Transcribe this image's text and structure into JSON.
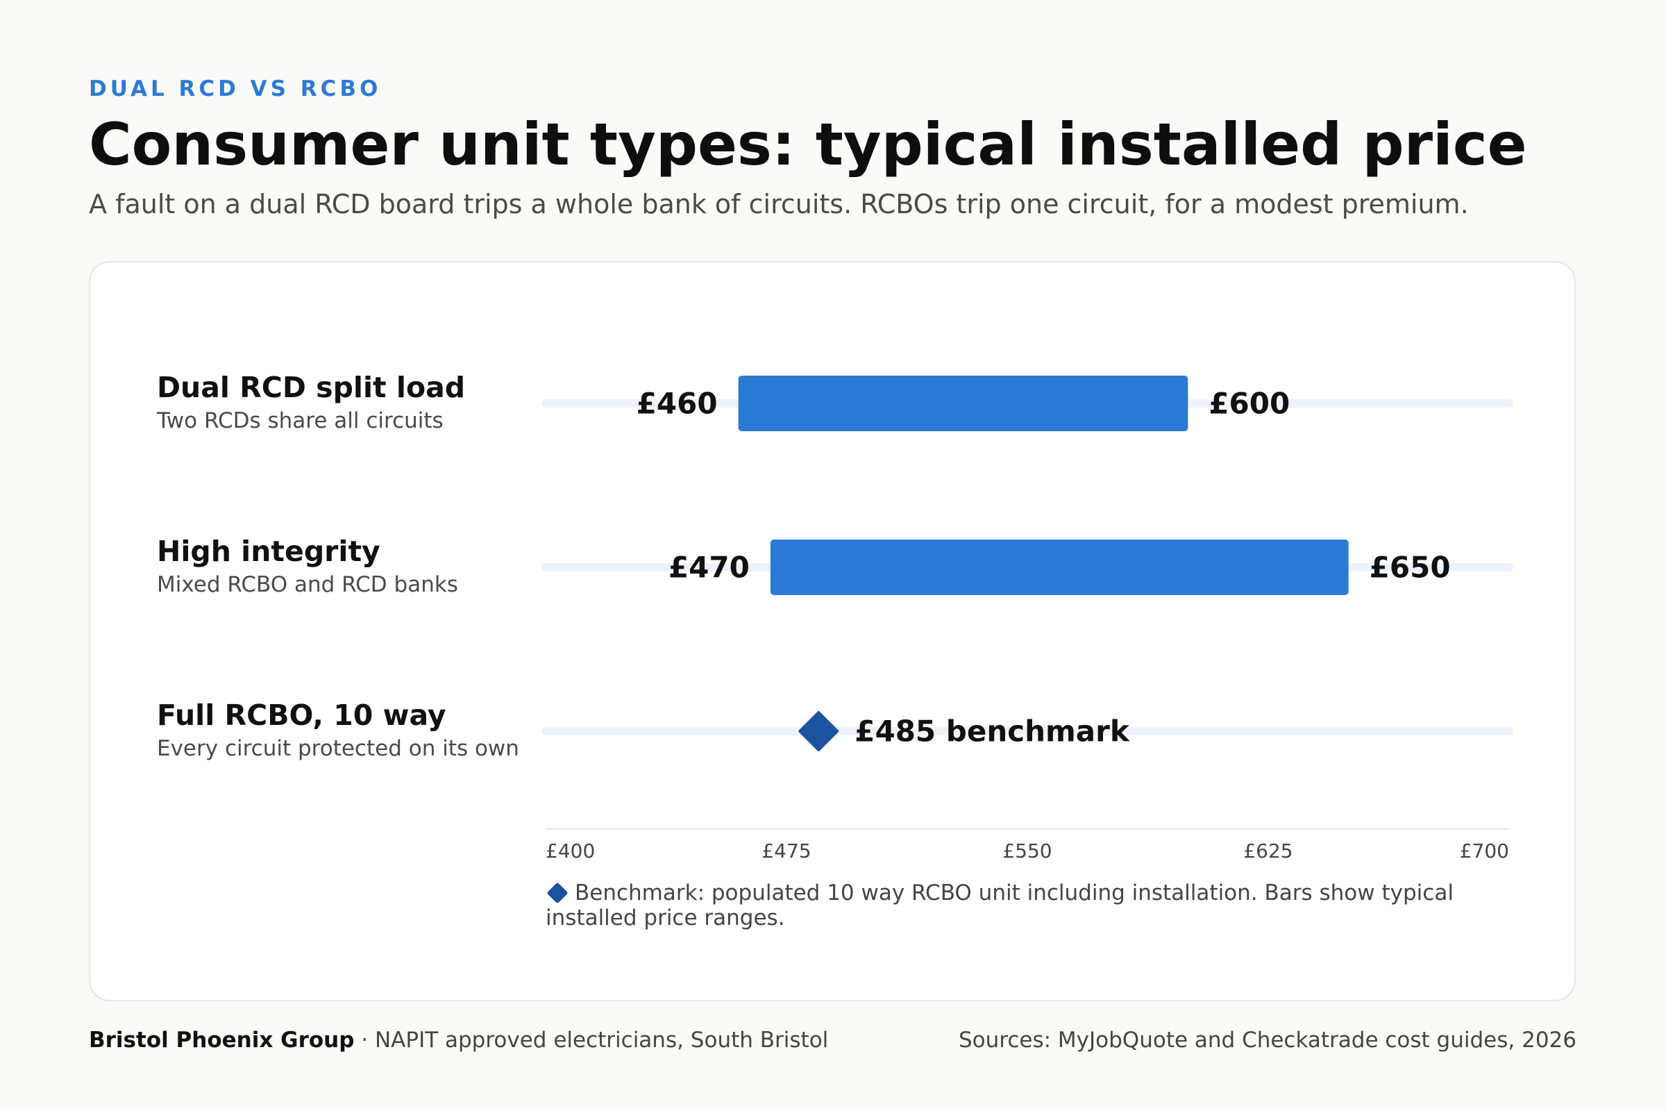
{
  "header": {
    "eyebrow": "DUAL RCD VS RCBO",
    "title": "Consumer unit types: typical installed price",
    "subtitle": "A fault on a dual RCD board trips a whole bank of circuits. RCBOs trip one circuit, for a modest premium."
  },
  "chart_data": {
    "type": "bar",
    "xlim": [
      400,
      700
    ],
    "x_ticks": [
      "£400",
      "£475",
      "£550",
      "£625",
      "£700"
    ],
    "x_tick_values": [
      400,
      475,
      550,
      625,
      700
    ],
    "rows": [
      {
        "name": "Dual RCD split load",
        "desc": "Two RCDs share all circuits",
        "kind": "range",
        "low": 460,
        "high": 600,
        "low_label": "£460",
        "high_label": "£600"
      },
      {
        "name": "High integrity",
        "desc": "Mixed RCBO and RCD banks",
        "kind": "range",
        "low": 470,
        "high": 650,
        "low_label": "£470",
        "high_label": "£650"
      },
      {
        "name": "Full RCBO, 10 way",
        "desc": "Every circuit protected on its own",
        "kind": "point",
        "value": 485,
        "value_label": "£485 benchmark"
      }
    ],
    "legend": "Benchmark: populated 10 way RCBO unit including installation. Bars show typical installed price ranges.",
    "colors": {
      "bar": "#2b7ad6",
      "marker": "#1d52a0",
      "track": "#edf2fa",
      "axis": "#e4e4e4"
    }
  },
  "footer": {
    "org": "Bristol Phoenix Group",
    "tagline": " · NAPIT approved electricians, South Bristol",
    "sources": "Sources: MyJobQuote and Checkatrade cost guides, 2026"
  }
}
